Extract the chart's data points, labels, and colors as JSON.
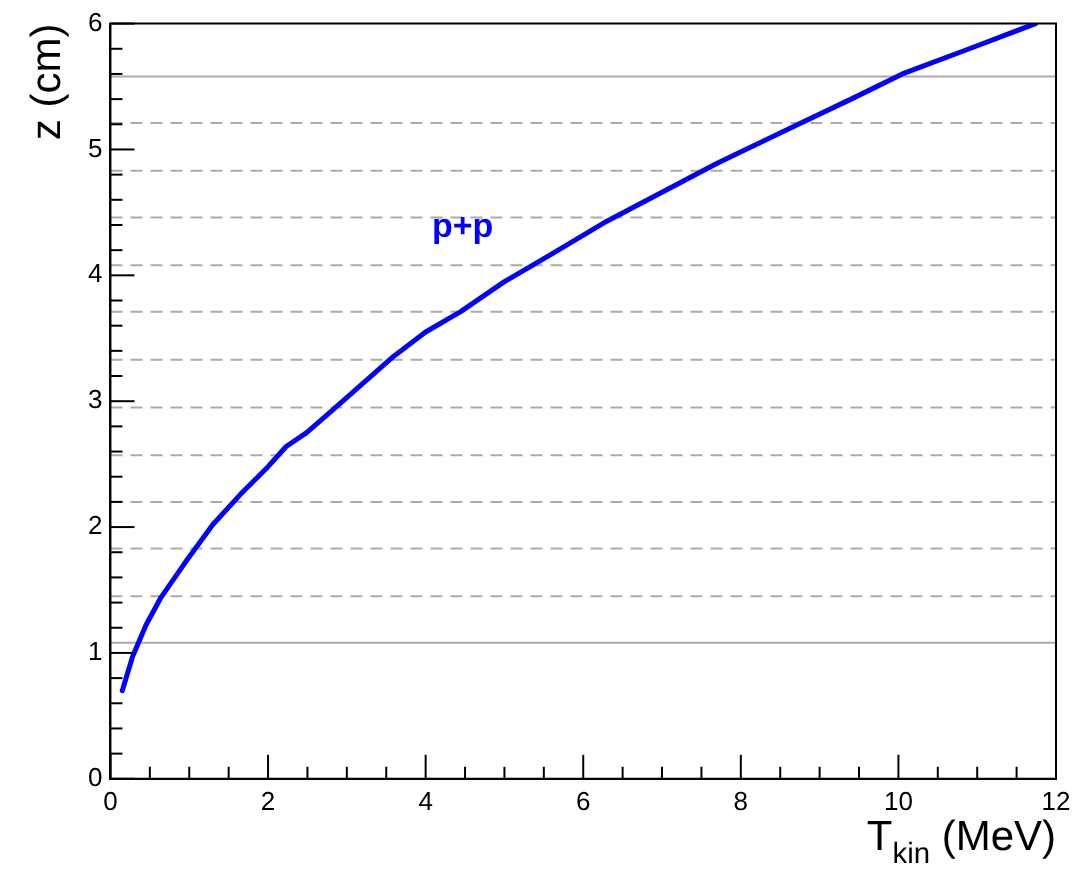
{
  "chart_data": {
    "type": "line",
    "xlabel": "T$_{kin}$ (MeV)",
    "ylabel": "z (cm)",
    "xlim": [
      0,
      12
    ],
    "ylim": [
      0,
      6
    ],
    "xticks": [
      0,
      {
        "value": 0.5,
        "label": null
      },
      {
        "value": 1,
        "label": null
      },
      {
        "value": 1.5,
        "label": null
      },
      2,
      {
        "value": 2.5,
        "label": null
      },
      {
        "value": 3,
        "label": null
      },
      {
        "value": 3.5,
        "label": null
      },
      4,
      {
        "value": 4.5,
        "label": null
      },
      {
        "value": 5,
        "label": null
      },
      {
        "value": 5.5,
        "label": null
      },
      6,
      {
        "value": 6.5,
        "label": null
      },
      {
        "value": 7,
        "label": null
      },
      {
        "value": 7.5,
        "label": null
      },
      8,
      {
        "value": 8.5,
        "label": null
      },
      {
        "value": 9,
        "label": null
      },
      {
        "value": 9.5,
        "label": null
      },
      10,
      {
        "value": 10.5,
        "label": null
      },
      {
        "value": 11,
        "label": null
      },
      {
        "value": 11.5,
        "label": null
      },
      12
    ],
    "yticks": [
      0,
      {
        "value": 0.2,
        "label": null
      },
      {
        "value": 0.4,
        "label": null
      },
      {
        "value": 0.6,
        "label": null
      },
      {
        "value": 0.8,
        "label": null
      },
      1,
      {
        "value": 1.2,
        "label": null
      },
      {
        "value": 1.4,
        "label": null
      },
      {
        "value": 1.6,
        "label": null
      },
      {
        "value": 1.8,
        "label": null
      },
      2,
      {
        "value": 2.2,
        "label": null
      },
      {
        "value": 2.4,
        "label": null
      },
      {
        "value": 2.6,
        "label": null
      },
      {
        "value": 2.8,
        "label": null
      },
      3,
      {
        "value": 3.2,
        "label": null
      },
      {
        "value": 3.4,
        "label": null
      },
      {
        "value": 3.6,
        "label": null
      },
      {
        "value": 3.8,
        "label": null
      },
      4,
      {
        "value": 4.2,
        "label": null
      },
      {
        "value": 4.4,
        "label": null
      },
      {
        "value": 4.6,
        "label": null
      },
      {
        "value": 4.8,
        "label": null
      },
      5,
      {
        "value": 5.2,
        "label": null
      },
      {
        "value": 5.4,
        "label": null
      },
      {
        "value": 5.6,
        "label": null
      },
      {
        "value": 5.8,
        "label": null
      },
      6
    ],
    "legend": false,
    "marker": "none",
    "grid": false,
    "ref_lines": [
      {
        "axis": "y",
        "value": 1.08,
        "color": "#aaaaaa",
        "line_style": "solid"
      },
      {
        "axis": "y",
        "value": 1.45,
        "color": "#aaaaaa",
        "line_style": "dashed"
      },
      {
        "axis": "y",
        "value": 1.83,
        "color": "#aaaaaa",
        "line_style": "dashed"
      },
      {
        "axis": "y",
        "value": 2.2,
        "color": "#aaaaaa",
        "line_style": "dashed"
      },
      {
        "axis": "y",
        "value": 2.57,
        "color": "#aaaaaa",
        "line_style": "dashed"
      },
      {
        "axis": "y",
        "value": 2.95,
        "color": "#aaaaaa",
        "line_style": "dashed"
      },
      {
        "axis": "y",
        "value": 3.33,
        "color": "#aaaaaa",
        "line_style": "dashed"
      },
      {
        "axis": "y",
        "value": 3.71,
        "color": "#aaaaaa",
        "line_style": "dashed"
      },
      {
        "axis": "y",
        "value": 4.08,
        "color": "#aaaaaa",
        "line_style": "dashed"
      },
      {
        "axis": "y",
        "value": 4.46,
        "color": "#aaaaaa",
        "line_style": "dashed"
      },
      {
        "axis": "y",
        "value": 4.83,
        "color": "#aaaaaa",
        "line_style": "dashed"
      },
      {
        "axis": "y",
        "value": 5.21,
        "color": "#aaaaaa",
        "line_style": "dashed"
      },
      {
        "axis": "y",
        "value": 5.58,
        "color": "#aaaaaa",
        "line_style": "solid"
      }
    ],
    "series": [
      {
        "name": "p+p",
        "color": "#0000ff",
        "line_style": "solid",
        "x": [
          0.15,
          0.28,
          0.45,
          0.64,
          0.95,
          1.3,
          1.65,
          2.0,
          2.23,
          2.49,
          2.8,
          3.2,
          3.6,
          4.0,
          4.44,
          5.0,
          5.63,
          6.3,
          7.0,
          7.7,
          8.73,
          9.4,
          10.05,
          10.9,
          11.74
        ],
        "values": [
          0.7,
          0.97,
          1.22,
          1.44,
          1.72,
          2.02,
          2.26,
          2.48,
          2.64,
          2.75,
          2.92,
          3.14,
          3.36,
          3.55,
          3.71,
          3.95,
          4.18,
          4.43,
          4.66,
          4.89,
          5.2,
          5.4,
          5.6,
          5.8,
          6.0
        ]
      }
    ]
  }
}
